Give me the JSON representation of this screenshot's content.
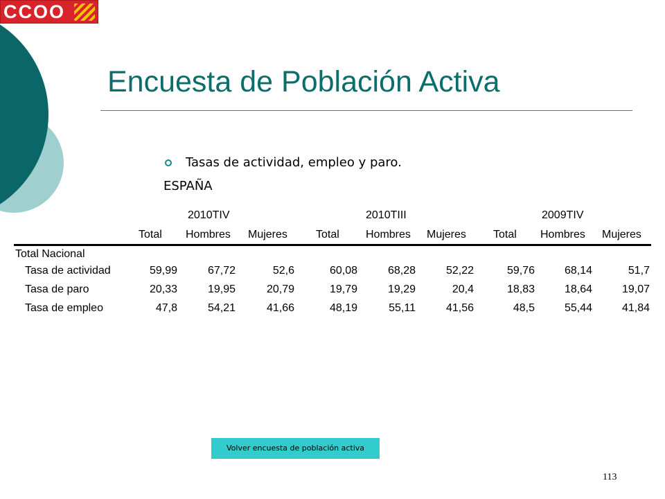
{
  "logo": {
    "text": "CCOO"
  },
  "title": "Encuesta de Población Activa",
  "bullet": "Tasas de actividad, empleo y paro.",
  "region": "ESPAÑA",
  "table": {
    "groups": [
      "2010TIV",
      "2010TIII",
      "2009TIV"
    ],
    "columns": [
      "Total",
      "Hombres",
      "Mujeres",
      "Total",
      "Hombres",
      "Mujeres",
      "Total",
      "Hombres",
      "Mujeres"
    ],
    "section": "Total Nacional",
    "rows": [
      {
        "label": "Tasa de actividad",
        "values": [
          "59,99",
          "67,72",
          "52,6",
          "60,08",
          "68,28",
          "52,22",
          "59,76",
          "68,14",
          "51,7"
        ]
      },
      {
        "label": "Tasa de paro",
        "values": [
          "20,33",
          "19,95",
          "20,79",
          "19,79",
          "19,29",
          "20,4",
          "18,83",
          "18,64",
          "19,07"
        ]
      },
      {
        "label": "Tasa de empleo",
        "values": [
          "47,8",
          "54,21",
          "41,66",
          "48,19",
          "55,11",
          "41,56",
          "48,5",
          "55,44",
          "41,84"
        ]
      }
    ]
  },
  "button": "Volver encuesta de población  activa",
  "page_number": "113",
  "colors": {
    "title": "#0b6e6b",
    "dark_teal": "#0b6767",
    "light_teal": "#9fcfcf",
    "button": "#33cccc",
    "logo_red": "#d8232a"
  }
}
